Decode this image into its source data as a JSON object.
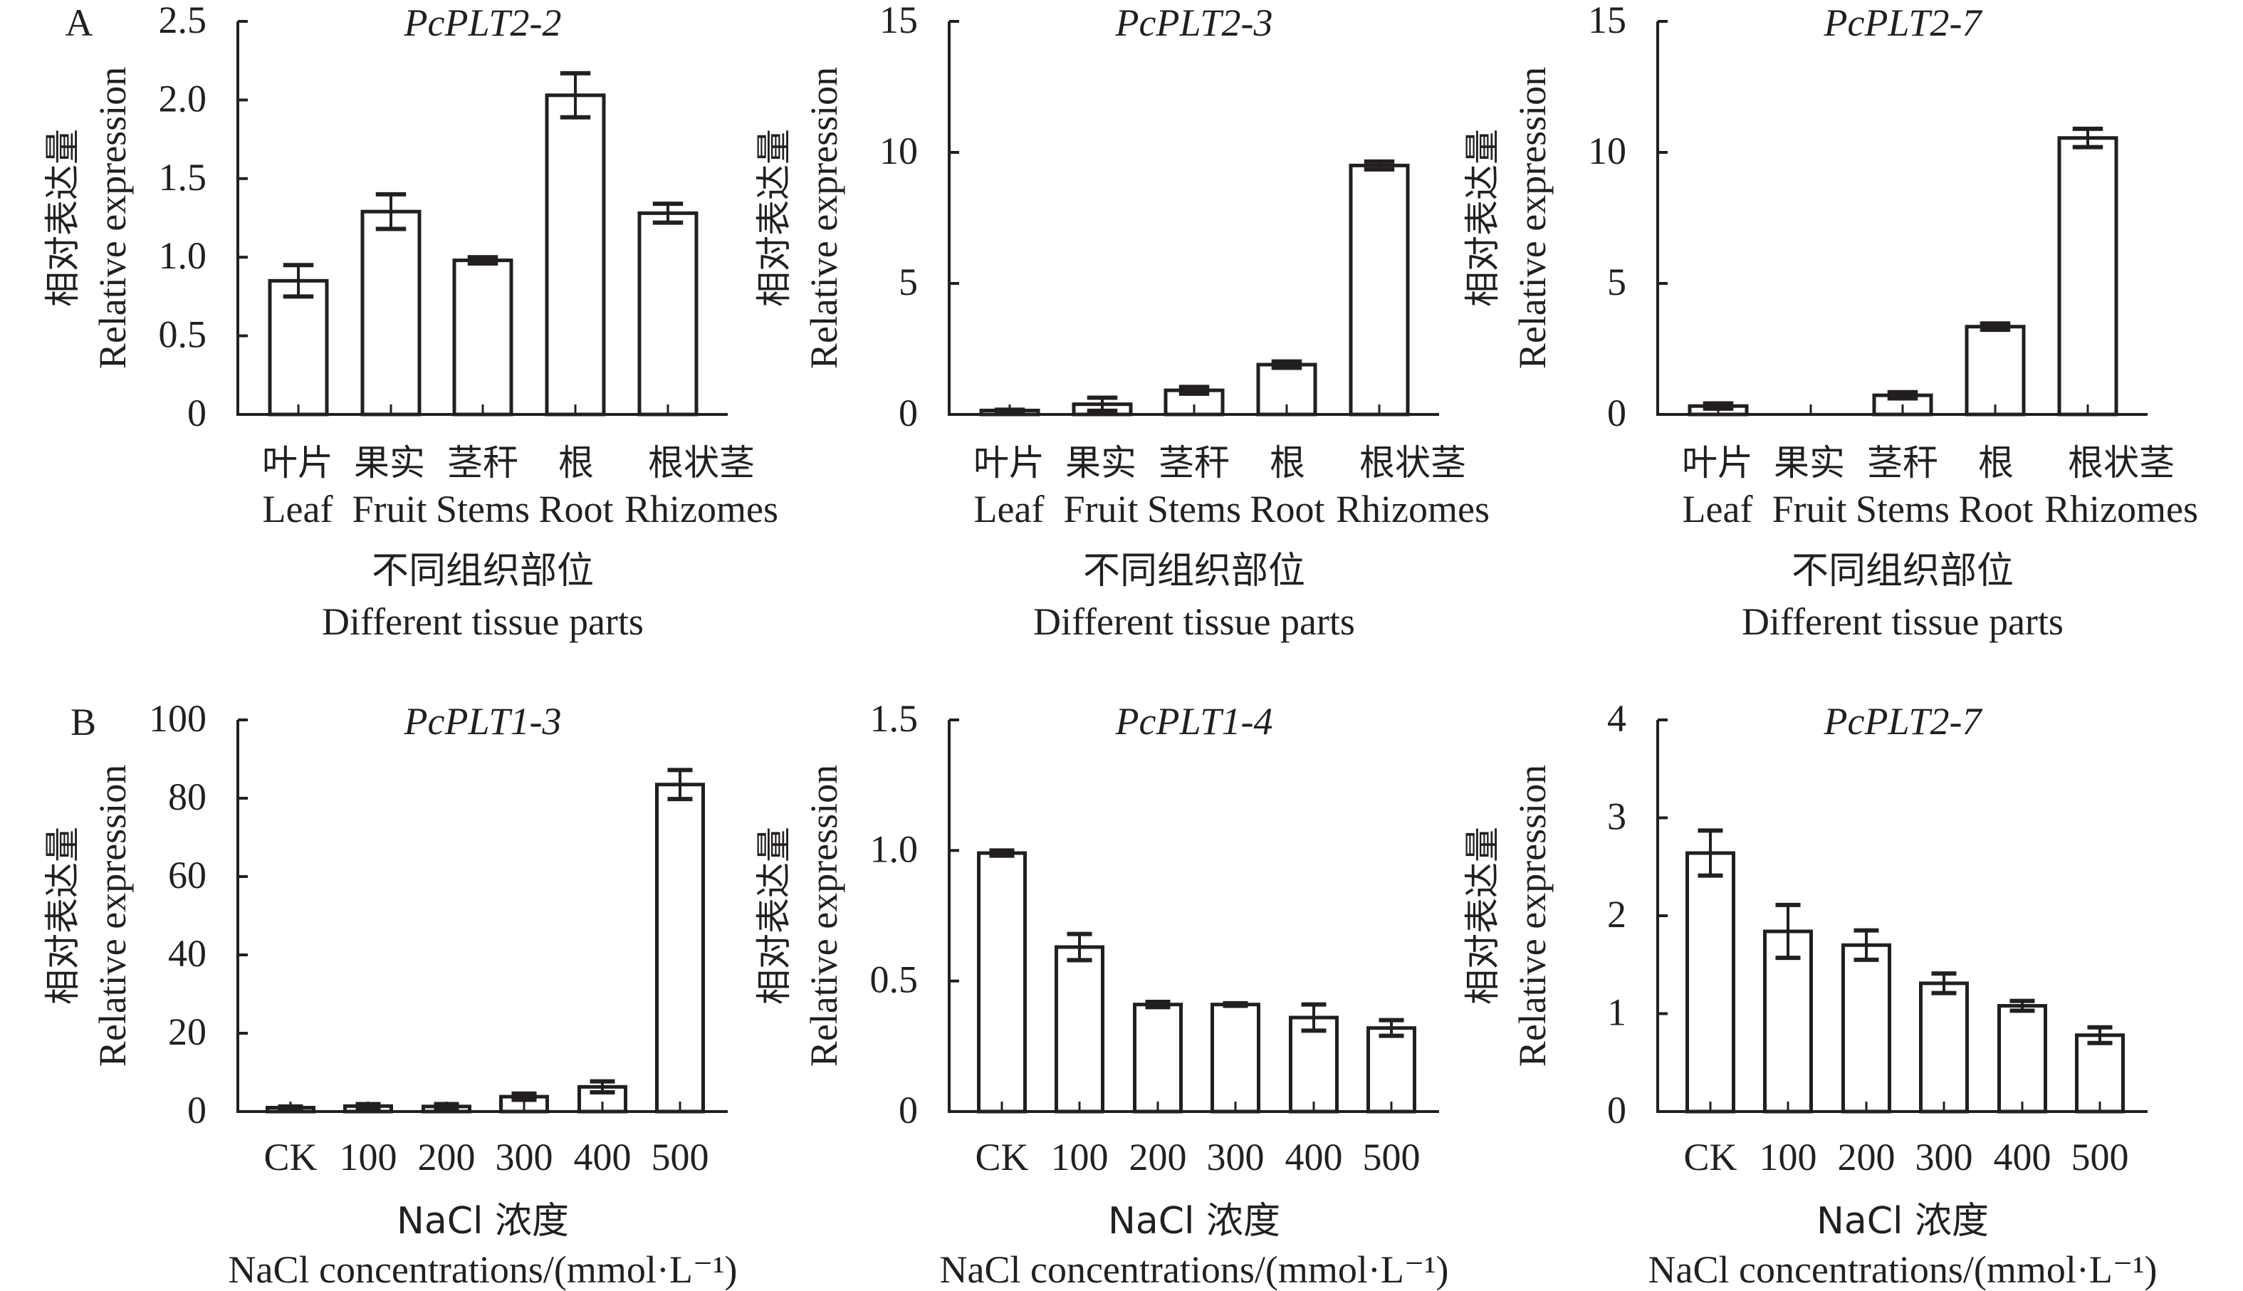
{
  "figure": {
    "panel_labels": [
      "A",
      "B"
    ]
  },
  "style": {
    "ink": "#231f20",
    "bar_fill": "#ffffff",
    "background": "#ffffff"
  },
  "chart_data": [
    {
      "panel": "A",
      "type": "bar",
      "title": "PcPLT2-2",
      "categories": [
        "Leaf",
        "Fruit",
        "Stems",
        "Root",
        "Rhizomes"
      ],
      "categories_cn": [
        "叶片",
        "果实",
        "茎秆",
        "根",
        "根状茎"
      ],
      "values": [
        0.85,
        1.29,
        0.98,
        2.03,
        1.28
      ],
      "errors": [
        0.1,
        0.11,
        0.02,
        0.14,
        0.06
      ],
      "ylim": [
        0,
        2.5
      ],
      "yticks": [
        0,
        0.5,
        1.0,
        1.5,
        2.0,
        2.5
      ],
      "ytick_labels": [
        "0",
        "0.5",
        "1.0",
        "1.5",
        "2.0",
        "2.5"
      ],
      "xlabel_cn": "不同组织部位",
      "xlabel": "Different tissue parts",
      "ylabel_cn": "相对表达量",
      "ylabel": "Relative expression",
      "grid": false,
      "legend": "none"
    },
    {
      "panel": "A",
      "type": "bar",
      "title": "PcPLT2-3",
      "categories": [
        "Leaf",
        "Fruit",
        "Stems",
        "Root",
        "Rhizomes"
      ],
      "categories_cn": [
        "叶片",
        "果实",
        "茎秆",
        "根",
        "根状茎"
      ],
      "values": [
        0.15,
        0.39,
        0.92,
        1.9,
        9.5
      ],
      "errors": [
        0.03,
        0.25,
        0.13,
        0.12,
        0.15
      ],
      "ylim": [
        0,
        15
      ],
      "yticks": [
        0,
        5,
        10,
        15
      ],
      "ytick_labels": [
        "0",
        "5",
        "10",
        "15"
      ],
      "xlabel_cn": "不同组织部位",
      "xlabel": "Different tissue parts",
      "ylabel_cn": "相对表达量",
      "ylabel": "Relative expression",
      "grid": false,
      "legend": "none"
    },
    {
      "panel": "A",
      "type": "bar",
      "title": "PcPLT2-7",
      "categories": [
        "Leaf",
        "Fruit",
        "Stems",
        "Root",
        "Rhizomes"
      ],
      "categories_cn": [
        "叶片",
        "果实",
        "茎秆",
        "根",
        "根状茎"
      ],
      "values": [
        0.32,
        0,
        0.73,
        3.35,
        10.55
      ],
      "errors": [
        0.1,
        0,
        0.12,
        0.12,
        0.35
      ],
      "ylim": [
        0,
        15
      ],
      "yticks": [
        0,
        5,
        10,
        15
      ],
      "ytick_labels": [
        "0",
        "5",
        "10",
        "15"
      ],
      "xlabel_cn": "不同组织部位",
      "xlabel": "Different tissue parts",
      "ylabel_cn": "相对表达量",
      "ylabel": "Relative expression",
      "grid": false,
      "legend": "none"
    },
    {
      "panel": "B",
      "type": "bar",
      "title": "PcPLT1-3",
      "categories": [
        "CK",
        "100",
        "200",
        "300",
        "400",
        "500"
      ],
      "values": [
        1.0,
        1.4,
        1.3,
        3.8,
        6.3,
        83.5
      ],
      "errors": [
        0.3,
        0.5,
        0.6,
        0.8,
        1.4,
        3.7
      ],
      "ylim": [
        0,
        100
      ],
      "yticks": [
        0,
        20,
        40,
        60,
        80,
        100
      ],
      "ytick_labels": [
        "0",
        "20",
        "40",
        "60",
        "80",
        "100"
      ],
      "xlabel_cn": "NaCl 浓度",
      "xlabel": "NaCl concentrations/(mmol·L⁻¹)",
      "ylabel_cn": "相对表达量",
      "ylabel": "Relative expression",
      "grid": false,
      "legend": "none"
    },
    {
      "panel": "B",
      "type": "bar",
      "title": "PcPLT1-4",
      "categories": [
        "CK",
        "100",
        "200",
        "300",
        "400",
        "500"
      ],
      "values": [
        0.99,
        0.63,
        0.41,
        0.41,
        0.36,
        0.32
      ],
      "errors": [
        0.01,
        0.05,
        0.01,
        0.005,
        0.05,
        0.03
      ],
      "ylim": [
        0,
        1.5
      ],
      "yticks": [
        0,
        0.5,
        1.0,
        1.5
      ],
      "ytick_labels": [
        "0",
        "0.5",
        "1.0",
        "1.5"
      ],
      "xlabel_cn": "NaCl 浓度",
      "xlabel": "NaCl concentrations/(mmol·L⁻¹)",
      "ylabel_cn": "相对表达量",
      "ylabel": "Relative expression",
      "grid": false,
      "legend": "none"
    },
    {
      "panel": "B",
      "type": "bar",
      "title": "PcPLT2-7",
      "categories": [
        "CK",
        "100",
        "200",
        "300",
        "400",
        "500"
      ],
      "values": [
        2.64,
        1.84,
        1.7,
        1.31,
        1.08,
        0.78
      ],
      "errors": [
        0.23,
        0.27,
        0.15,
        0.1,
        0.05,
        0.08
      ],
      "ylim": [
        0,
        4
      ],
      "yticks": [
        0,
        1,
        2,
        3,
        4
      ],
      "ytick_labels": [
        "0",
        "1",
        "2",
        "3",
        "4"
      ],
      "xlabel_cn": "NaCl 浓度",
      "xlabel": "NaCl concentrations/(mmol·L⁻¹)",
      "ylabel_cn": "相对表达量",
      "ylabel": "Relative expression",
      "grid": false,
      "legend": "none"
    }
  ]
}
